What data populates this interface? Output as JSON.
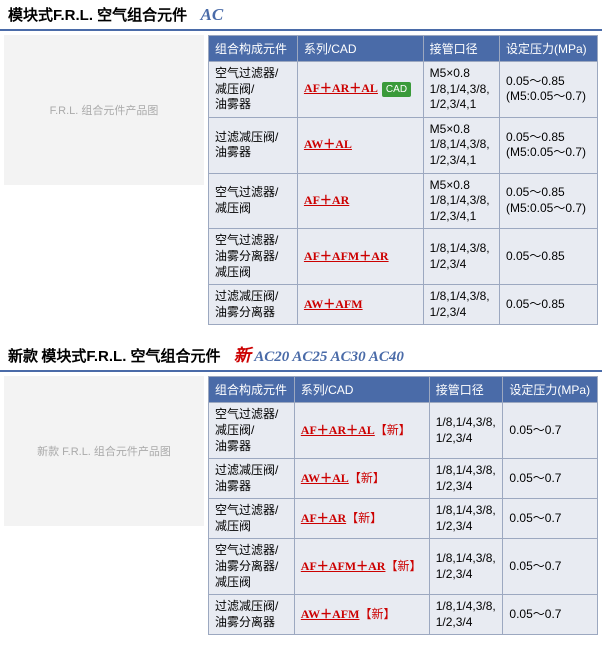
{
  "section1": {
    "title_main": "模块式F.R.L. 空气组合元件",
    "title_code": "AC",
    "headers": [
      "组合构成元件",
      "系列/CAD",
      "接管口径",
      "设定压力(MPa)"
    ],
    "image_alt": "F.R.L. 组合元件产品图",
    "rows": [
      {
        "component": "空气过滤器/\n减压阀/\n油雾器",
        "series": "AF＋AR＋AL",
        "has_cad": true,
        "port": "M5×0.8\n1/8,1/4,3/8,\n1/2,3/4,1",
        "pressure": "0.05～0.85\n(M5:0.05～0.7)"
      },
      {
        "component": "过滤减压阀/\n油雾器",
        "series": "AW＋AL",
        "has_cad": false,
        "port": "M5×0.8\n1/8,1/4,3/8,\n1/2,3/4,1",
        "pressure": "0.05～0.85\n(M5:0.05～0.7)"
      },
      {
        "component": "空气过滤器/\n减压阀",
        "series": "AF＋AR",
        "has_cad": false,
        "port": "M5×0.8\n1/8,1/4,3/8,\n1/2,3/4,1",
        "pressure": "0.05～0.85\n(M5:0.05～0.7)"
      },
      {
        "component": "空气过滤器/\n油雾分离器/\n减压阀",
        "series": "AF＋AFM＋AR",
        "has_cad": false,
        "port": "1/8,1/4,3/8,\n1/2,3/4",
        "pressure": "0.05～0.85"
      },
      {
        "component": "过滤减压阀/\n油雾分离器",
        "series": "AW＋AFM",
        "has_cad": false,
        "port": "1/8,1/4,3/8,\n1/2,3/4",
        "pressure": "0.05～0.85"
      }
    ]
  },
  "section2": {
    "title_prefix": "新款",
    "title_main": "模块式F.R.L. 空气组合元件",
    "title_new": "新",
    "title_models": "AC20 AC25 AC30 AC40",
    "headers": [
      "组合构成元件",
      "系列/CAD",
      "接管口径",
      "设定压力(MPa)"
    ],
    "image_alt": "新款 F.R.L. 组合元件产品图",
    "new_label": "【新】",
    "rows": [
      {
        "component": "空气过滤器/\n减压阀/\n油雾器",
        "series": "AF＋AR＋AL",
        "port": "1/8,1/4,3/8,\n1/2,3/4",
        "pressure": "0.05～0.7"
      },
      {
        "component": "过滤减压阀/\n油雾器",
        "series": "AW＋AL",
        "port": "1/8,1/4,3/8,\n1/2,3/4",
        "pressure": "0.05～0.7"
      },
      {
        "component": "空气过滤器/\n减压阀",
        "series": "AF＋AR",
        "port": "1/8,1/4,3/8,\n1/2,3/4",
        "pressure": "0.05～0.7"
      },
      {
        "component": "空气过滤器/\n油雾分离器/\n减压阀",
        "series": "AF＋AFM＋AR",
        "port": "1/8,1/4,3/8,\n1/2,3/4",
        "pressure": "0.05～0.7"
      },
      {
        "component": "过滤减压阀/\n油雾分离器",
        "series": "AW＋AFM",
        "port": "1/8,1/4,3/8,\n1/2,3/4",
        "pressure": "0.05～0.7"
      }
    ]
  },
  "cad_text": "CAD"
}
